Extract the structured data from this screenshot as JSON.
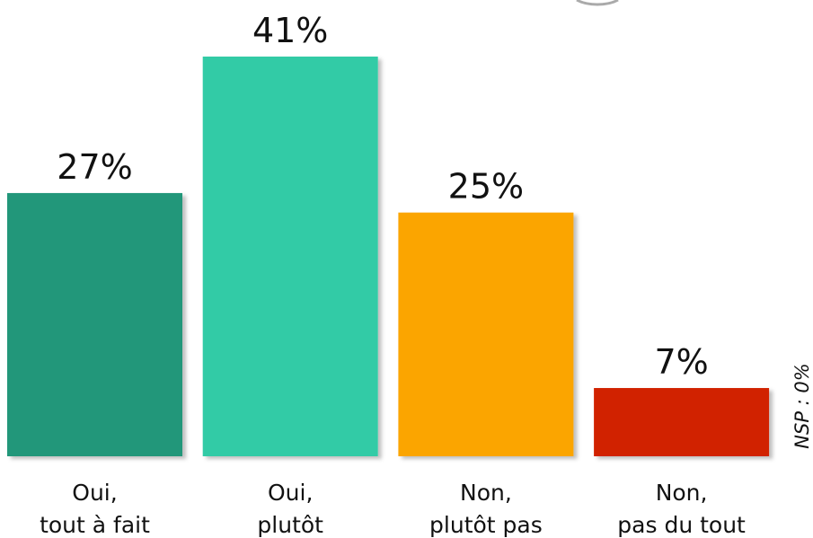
{
  "chart_data": {
    "type": "bar",
    "categories": [
      "Oui,\ntout à fait",
      "Oui,\nplutôt",
      "Non,\nplutôt pas",
      "Non,\npas du tout"
    ],
    "values": [
      27,
      41,
      25,
      7
    ],
    "value_labels": [
      "27%",
      "41%",
      "25%",
      "7%"
    ],
    "colors": [
      "#22977a",
      "#33cba6",
      "#fba500",
      "#d12200"
    ],
    "annotation": "NSP : 0%"
  }
}
